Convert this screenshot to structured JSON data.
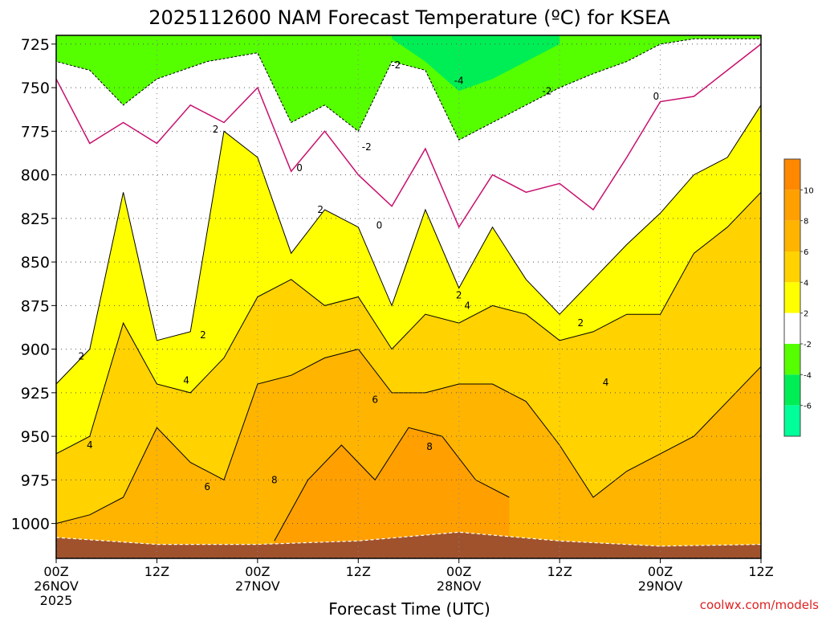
{
  "chart_data": {
    "type": "heatmap",
    "title": "2025112600 NAM Forecast Temperature (ºC) for KSEA",
    "xlabel": "Forecast Time (UTC)",
    "ylabel": "",
    "watermark": "coolwx.com/models",
    "y_axis": {
      "ticks": [
        "725",
        "750",
        "775",
        "800",
        "825",
        "850",
        "875",
        "900",
        "925",
        "950",
        "975",
        "1000"
      ],
      "values": [
        725,
        750,
        775,
        800,
        825,
        850,
        875,
        900,
        925,
        950,
        975,
        1000
      ],
      "range": [
        720,
        1020
      ],
      "inverted": true
    },
    "x_axis": {
      "ticks": [
        {
          "line1": "00Z",
          "line2": "26NOV",
          "line3": "2025",
          "hour": 0
        },
        {
          "line1": "12Z",
          "line2": "",
          "line3": "",
          "hour": 12
        },
        {
          "line1": "00Z",
          "line2": "27NOV",
          "line3": "",
          "hour": 24
        },
        {
          "line1": "12Z",
          "line2": "",
          "line3": "",
          "hour": 36
        },
        {
          "line1": "00Z",
          "line2": "28NOV",
          "line3": "",
          "hour": 48
        },
        {
          "line1": "12Z",
          "line2": "",
          "line3": "",
          "hour": 60
        },
        {
          "line1": "00Z",
          "line2": "29NOV",
          "line3": "",
          "hour": 72
        },
        {
          "line1": "12Z",
          "line2": "",
          "line3": "",
          "hour": 84
        }
      ],
      "range": [
        0,
        84
      ]
    },
    "colorbar": {
      "labels": [
        "10",
        "8",
        "6",
        "4",
        "2",
        "-2",
        "-4",
        "-6"
      ],
      "bands": [
        {
          "from": 10,
          "to": 12,
          "color": "#ff8800"
        },
        {
          "from": 8,
          "to": 10,
          "color": "#ff9f00"
        },
        {
          "from": 6,
          "to": 8,
          "color": "#ffb400"
        },
        {
          "from": 4,
          "to": 6,
          "color": "#ffd200"
        },
        {
          "from": 2,
          "to": 4,
          "color": "#ffff00"
        },
        {
          "from": -2,
          "to": 2,
          "color": "#ffffff"
        },
        {
          "from": -4,
          "to": -2,
          "color": "#55ff00"
        },
        {
          "from": -6,
          "to": -4,
          "color": "#00ee55"
        },
        {
          "from": -8,
          "to": -6,
          "color": "#00ff99"
        }
      ]
    },
    "contour_levels": [
      -4,
      -2,
      0,
      2,
      4,
      6,
      8
    ],
    "contour_labels": [
      {
        "text": "-2",
        "hour": 40.5,
        "p": 737
      },
      {
        "text": "-4",
        "hour": 48,
        "p": 746
      },
      {
        "text": "-2",
        "hour": 58.5,
        "p": 752
      },
      {
        "text": "0",
        "hour": 71.5,
        "p": 755
      },
      {
        "text": "2",
        "hour": 19,
        "p": 774
      },
      {
        "text": "0",
        "hour": 29,
        "p": 796
      },
      {
        "text": "-2",
        "hour": 37,
        "p": 784
      },
      {
        "text": "2",
        "hour": 31.5,
        "p": 820
      },
      {
        "text": "0",
        "hour": 38.5,
        "p": 829
      },
      {
        "text": "2",
        "hour": 48,
        "p": 869
      },
      {
        "text": "4",
        "hour": 49,
        "p": 875
      },
      {
        "text": "2",
        "hour": 62.5,
        "p": 885
      },
      {
        "text": "4",
        "hour": 65.5,
        "p": 919
      },
      {
        "text": "2",
        "hour": 3,
        "p": 904
      },
      {
        "text": "2",
        "hour": 17.5,
        "p": 892
      },
      {
        "text": "4",
        "hour": 15.5,
        "p": 918
      },
      {
        "text": "6",
        "hour": 38,
        "p": 929
      },
      {
        "text": "4",
        "hour": 4,
        "p": 955
      },
      {
        "text": "6",
        "hour": 18,
        "p": 979
      },
      {
        "text": "8",
        "hour": 26,
        "p": 975
      },
      {
        "text": "8",
        "hour": 44.5,
        "p": 956
      }
    ],
    "series": [
      {
        "name": "0C level (hPa)",
        "x": [
          0,
          4,
          8,
          12,
          16,
          20,
          24,
          28,
          32,
          36,
          40,
          44,
          48,
          52,
          56,
          60,
          64,
          68,
          72,
          76,
          80,
          84
        ],
        "values": [
          745,
          782,
          770,
          782,
          760,
          770,
          750,
          798,
          775,
          800,
          818,
          785,
          830,
          800,
          810,
          805,
          820,
          790,
          758,
          755,
          740,
          725
        ]
      },
      {
        "name": "2C level (hPa)",
        "x": [
          0,
          4,
          8,
          12,
          16,
          20,
          24,
          28,
          32,
          36,
          40,
          44,
          48,
          52,
          56,
          60,
          64,
          68,
          72,
          76,
          80,
          84
        ],
        "values": [
          920,
          900,
          810,
          895,
          890,
          775,
          790,
          845,
          820,
          830,
          875,
          820,
          865,
          830,
          860,
          880,
          860,
          840,
          822,
          800,
          790,
          760
        ]
      },
      {
        "name": "4C level (hPa)",
        "x": [
          0,
          4,
          8,
          12,
          16,
          20,
          24,
          28,
          32,
          36,
          40,
          44,
          48,
          52,
          56,
          60,
          64,
          68,
          72,
          76,
          80,
          84
        ],
        "values": [
          960,
          950,
          885,
          920,
          925,
          905,
          870,
          860,
          875,
          870,
          900,
          880,
          885,
          875,
          880,
          895,
          890,
          880,
          880,
          845,
          830,
          810
        ]
      },
      {
        "name": "6C level (hPa)",
        "x": [
          0,
          4,
          8,
          12,
          16,
          20,
          24,
          28,
          32,
          36,
          40,
          44,
          48,
          52,
          56,
          60,
          64,
          68,
          72,
          76,
          80,
          84
        ],
        "values": [
          1000,
          995,
          985,
          945,
          965,
          975,
          920,
          915,
          905,
          900,
          925,
          925,
          920,
          920,
          930,
          955,
          985,
          970,
          960,
          950,
          930,
          910
        ]
      },
      {
        "name": "8C level (hPa)",
        "x": [
          26,
          30,
          34,
          38,
          42,
          46,
          50,
          54
        ],
        "values": [
          1010,
          975,
          955,
          975,
          945,
          950,
          975,
          985
        ]
      }
    ],
    "surface_pressure": {
      "x": [
        0,
        12,
        24,
        36,
        48,
        60,
        72,
        84
      ],
      "values": [
        1008,
        1012,
        1012,
        1010,
        1005,
        1010,
        1013,
        1012
      ]
    }
  }
}
